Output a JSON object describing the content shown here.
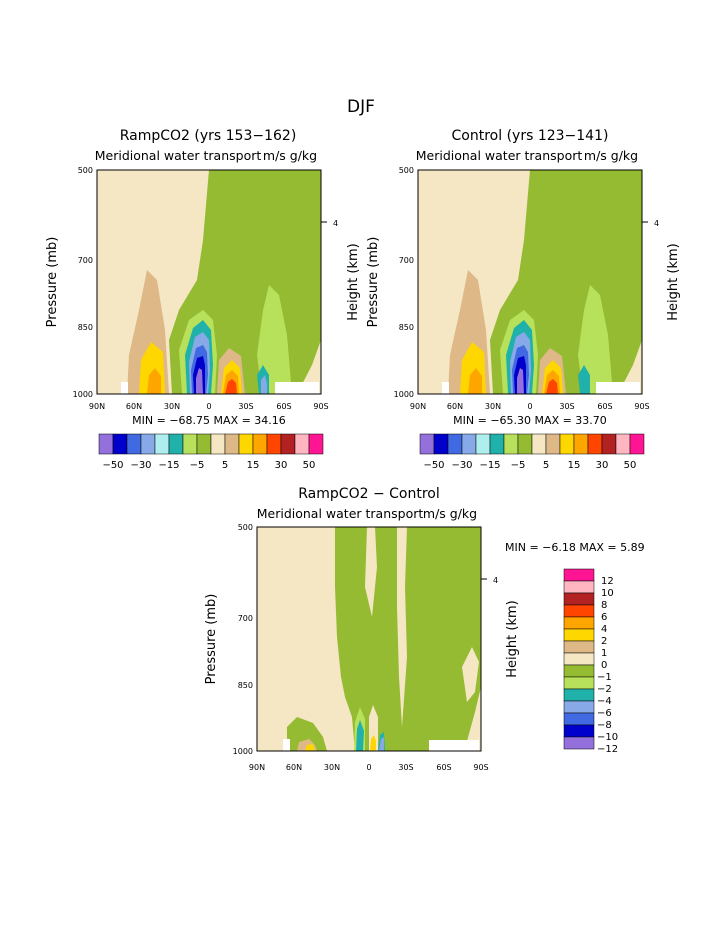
{
  "page": {
    "season": "DJF"
  },
  "colors": {
    "neg12": "#9370db",
    "neg10": "#0000cd",
    "neg8": "#4169e1",
    "neg6": "#87a9e8",
    "neg4": "#20b2aa",
    "neg2": "#b7e15a",
    "neg1": "#94bb32",
    "zero": "#f5e6c4",
    "pos1": "#deb887",
    "pos2": "#ffd700",
    "pos4": "#ffa500",
    "pos6": "#ff4500",
    "pos8": "#b22222",
    "pos10": "#ffb6c1",
    "pos12": "#ff1493"
  },
  "chart_data": [
    {
      "type": "heatmap",
      "title": "RampCO2 (yrs 153−162)",
      "subtitle": "Meridional water transport",
      "units": "m/s g/kg",
      "xlabel": "",
      "ylabel": "Pressure (mb)",
      "ylabel_right": "Height (km)",
      "x_tick_labels": [
        "90N",
        "60N",
        "30N",
        "0",
        "30S",
        "60S",
        "90S"
      ],
      "y_tick_labels": [
        "500",
        "700",
        "850",
        "1000"
      ],
      "right_tick_labels": [
        "4"
      ],
      "min_label": "MIN = −68.75   MAX =   34.16",
      "min": -68.75,
      "max": 34.16,
      "colorbar_labels": [
        "−50",
        "−30",
        "−15",
        "−5",
        "5",
        "15",
        "30",
        "50"
      ]
    },
    {
      "type": "heatmap",
      "title": "Control (yrs 123−141)",
      "subtitle": "Meridional water transport",
      "units": "m/s g/kg",
      "xlabel": "",
      "ylabel": "Pressure (mb)",
      "ylabel_right": "Height (km)",
      "x_tick_labels": [
        "90N",
        "60N",
        "30N",
        "0",
        "30S",
        "60S",
        "90S"
      ],
      "y_tick_labels": [
        "500",
        "700",
        "850",
        "1000"
      ],
      "right_tick_labels": [
        "4"
      ],
      "min_label": "MIN = −65.30   MAX =   33.70",
      "min": -65.3,
      "max": 33.7,
      "colorbar_labels": [
        "−50",
        "−30",
        "−15",
        "−5",
        "5",
        "15",
        "30",
        "50"
      ]
    },
    {
      "type": "heatmap",
      "title": "RampCO2 − Control",
      "subtitle": "Meridional water transport",
      "units": "m/s g/kg",
      "xlabel": "",
      "ylabel": "Pressure (mb)",
      "ylabel_right": "Height (km)",
      "x_tick_labels": [
        "90N",
        "60N",
        "30N",
        "0",
        "30S",
        "60S",
        "90S"
      ],
      "y_tick_labels": [
        "500",
        "700",
        "850",
        "1000"
      ],
      "right_tick_labels": [
        "4"
      ],
      "min_label": "MIN =   −6.18   MAX =    5.89",
      "min": -6.18,
      "max": 5.89,
      "colorbar_labels": [
        "12",
        "10",
        "8",
        "6",
        "4",
        "2",
        "1",
        "0",
        "−1",
        "−2",
        "−4",
        "−6",
        "−8",
        "−10",
        "−12"
      ]
    }
  ]
}
